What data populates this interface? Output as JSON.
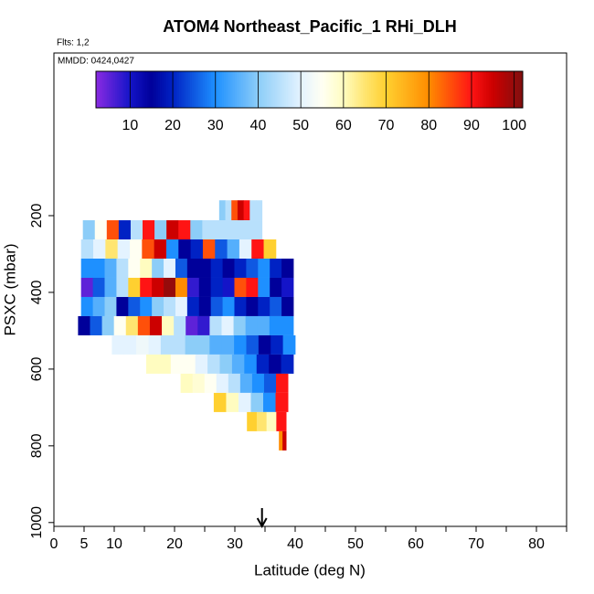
{
  "chart_data": {
    "type": "curtain",
    "title": "ATOM4 Northeast_Pacific_1 RHi_DLH",
    "subtitle": "Flts: 1,2",
    "annotation": "MMDD: 0424,0427",
    "x_label": "Latitude (deg N)",
    "y_label": "PSXC (mbar)",
    "xlim": [
      0,
      85
    ],
    "xticks": [
      0,
      5,
      10,
      20,
      30,
      40,
      50,
      60,
      70,
      80
    ],
    "xminor": [
      15,
      25,
      35,
      45,
      55,
      65,
      75,
      85
    ],
    "ylim": [
      1010,
      -224
    ],
    "yticks": [
      200,
      400,
      600,
      800,
      1000
    ],
    "marker_x": 34.5,
    "clim": [
      2,
      102
    ],
    "cticks": [
      10,
      20,
      30,
      40,
      50,
      60,
      70,
      80,
      90,
      100
    ],
    "colormap": [
      [
        2,
        "#8a2be2"
      ],
      [
        10,
        "#1414c8"
      ],
      [
        15,
        "#00009a"
      ],
      [
        20,
        "#0022c4"
      ],
      [
        30,
        "#1e90ff"
      ],
      [
        40,
        "#8ccdf8"
      ],
      [
        50,
        "#e4f3ff"
      ],
      [
        55,
        "#fffff2"
      ],
      [
        60,
        "#fffcc0"
      ],
      [
        65,
        "#ffe570"
      ],
      [
        70,
        "#ffd030"
      ],
      [
        80,
        "#ff8c00"
      ],
      [
        90,
        "#ff1414"
      ],
      [
        95,
        "#cc0000"
      ],
      [
        102,
        "#801010"
      ]
    ],
    "rows": [
      {
        "p": [
          160,
          212
        ],
        "lat": [
          27.4,
          34.5
        ],
        "values": [
          40,
          45,
          85,
          95,
          90,
          45,
          45
        ]
      },
      {
        "p": [
          212,
          262
        ],
        "lat": [
          4.8,
          34.5
        ],
        "values": [
          40,
          55,
          85,
          20,
          45,
          90,
          40,
          95,
          90,
          40,
          45,
          45,
          45,
          45,
          45
        ]
      },
      {
        "p": [
          262,
          312
        ],
        "lat": [
          4.5,
          36.8
        ],
        "values": [
          45,
          50,
          65,
          50,
          55,
          85,
          95,
          30,
          15,
          20,
          85,
          25,
          35,
          50,
          90,
          70
        ]
      },
      {
        "p": [
          312,
          362
        ],
        "lat": [
          4.5,
          39.7
        ],
        "values": [
          30,
          30,
          35,
          45,
          55,
          60,
          40,
          50,
          25,
          15,
          15,
          20,
          15,
          20,
          25,
          30,
          20,
          15
        ]
      },
      {
        "p": [
          362,
          412
        ],
        "lat": [
          4.5,
          39.7
        ],
        "values": [
          5,
          25,
          35,
          45,
          70,
          90,
          95,
          100,
          80,
          8,
          15,
          20,
          10,
          85,
          90,
          30,
          15,
          10
        ]
      },
      {
        "p": [
          412,
          462
        ],
        "lat": [
          4.5,
          39.7
        ],
        "values": [
          30,
          35,
          40,
          15,
          25,
          30,
          40,
          45,
          50,
          20,
          15,
          25,
          30,
          20,
          15,
          20,
          25,
          15
        ]
      },
      {
        "p": [
          462,
          512
        ],
        "lat": [
          4,
          39.7
        ],
        "values": [
          15,
          25,
          40,
          55,
          65,
          85,
          95,
          60,
          45,
          5,
          8,
          45,
          50,
          40,
          35,
          35,
          30,
          30
        ]
      },
      {
        "p": [
          512,
          562
        ],
        "lat": [
          9.6,
          40
        ],
        "values": [
          50,
          50,
          52,
          50,
          45,
          45,
          40,
          40,
          35,
          35,
          30,
          25,
          15,
          20,
          30
        ]
      },
      {
        "p": [
          562,
          612
        ],
        "lat": [
          15.3,
          39.7
        ],
        "values": [
          60,
          60,
          55,
          55,
          50,
          45,
          40,
          35,
          30,
          20,
          15,
          20
        ]
      },
      {
        "p": [
          612,
          662
        ],
        "lat": [
          21,
          38.8
        ],
        "values": [
          60,
          58,
          55,
          50,
          45,
          35,
          30,
          25,
          90
        ]
      },
      {
        "p": [
          662,
          712
        ],
        "lat": [
          26.5,
          38.8
        ],
        "values": [
          70,
          60,
          50,
          40,
          30,
          90
        ]
      },
      {
        "p": [
          712,
          762
        ],
        "lat": [
          32,
          38.5
        ],
        "values": [
          70,
          65,
          60,
          90
        ]
      },
      {
        "p": [
          762,
          812
        ],
        "lat": [
          37.3,
          38.5
        ],
        "values": [
          80,
          95
        ]
      }
    ]
  }
}
